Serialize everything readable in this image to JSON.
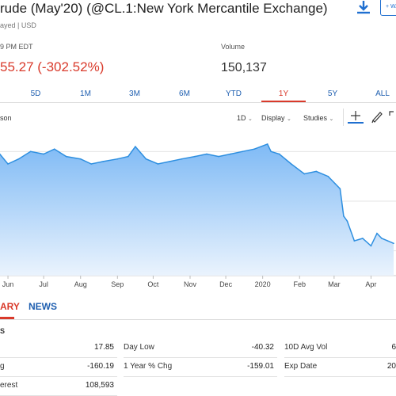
{
  "header": {
    "title": "rude (May'20) (@CL.1:New York Mercantile Exchange)",
    "subinfo": "ayed | USD",
    "time": "9 PM EDT",
    "price_change": "55.27 (-302.52%)",
    "volume_label": "Volume",
    "volume_value": "150,137",
    "download_icon": "download-icon",
    "watch_label": "+ WA"
  },
  "range_tabs": [
    {
      "label": "5D",
      "active": false
    },
    {
      "label": "1M",
      "active": false
    },
    {
      "label": "3M",
      "active": false
    },
    {
      "label": "6M",
      "active": false
    },
    {
      "label": "YTD",
      "active": false
    },
    {
      "label": "1Y",
      "active": true
    },
    {
      "label": "5Y",
      "active": false
    },
    {
      "label": "ALL",
      "active": false
    }
  ],
  "toolbar": {
    "compare_label": "son",
    "interval_label": "1D",
    "display_label": "Display",
    "studies_label": "Studies",
    "crosshair_icon": "crosshair-icon",
    "pencil_icon": "pencil-icon",
    "expand_icon": "expand-icon"
  },
  "colors": {
    "accent": "#d93a2b",
    "link": "#1f5fb0",
    "line": "#2e8fe0",
    "fill_top": "#7fbaf5",
    "fill_bottom": "#eaf3fd"
  },
  "chart_data": {
    "type": "area",
    "x_ticks": [
      "Jun",
      "Jul",
      "Aug",
      "Sep",
      "Oct",
      "Nov",
      "Dec",
      "2020",
      "Feb",
      "Mar",
      "Apr"
    ],
    "x": [
      "2019-05-20",
      "2019-06-01",
      "2019-06-10",
      "2019-06-20",
      "2019-07-01",
      "2019-07-10",
      "2019-07-20",
      "2019-08-01",
      "2019-08-10",
      "2019-08-20",
      "2019-09-01",
      "2019-09-10",
      "2019-09-16",
      "2019-09-25",
      "2019-10-05",
      "2019-10-15",
      "2019-10-25",
      "2019-11-05",
      "2019-11-15",
      "2019-11-25",
      "2019-12-05",
      "2019-12-15",
      "2019-12-25",
      "2020-01-05",
      "2020-01-08",
      "2020-01-15",
      "2020-01-25",
      "2020-02-05",
      "2020-02-15",
      "2020-02-25",
      "2020-03-02",
      "2020-03-06",
      "2020-03-09",
      "2020-03-12",
      "2020-03-18",
      "2020-03-25",
      "2020-04-01",
      "2020-04-06",
      "2020-04-10",
      "2020-04-15",
      "2020-04-20"
    ],
    "values": [
      62,
      55,
      57,
      60,
      59,
      61,
      58,
      57,
      55,
      56,
      57,
      58,
      62,
      57,
      55,
      56,
      57,
      58,
      59,
      58,
      59,
      60,
      61,
      63,
      60,
      59,
      55,
      51,
      52,
      50,
      47,
      45,
      34,
      32,
      24,
      25,
      22,
      27,
      25,
      24,
      23
    ],
    "ylim": [
      10,
      70
    ],
    "grid": true,
    "legend": "none"
  },
  "section_tabs": {
    "summary": "ARY",
    "news": "NEWS"
  },
  "stats": {
    "header": "S",
    "rows": [
      {
        "label": "",
        "value": "17.85"
      },
      {
        "label": "g",
        "value": "-160.19"
      },
      {
        "label": "erest",
        "value": "108,593"
      },
      {
        "label": "Day Low",
        "value": "-40.32"
      },
      {
        "label": "1 Year % Chg",
        "value": "-159.01"
      },
      {
        "label": "10D Avg Vol",
        "value": "6"
      },
      {
        "label": "Exp Date",
        "value": "20"
      }
    ]
  }
}
